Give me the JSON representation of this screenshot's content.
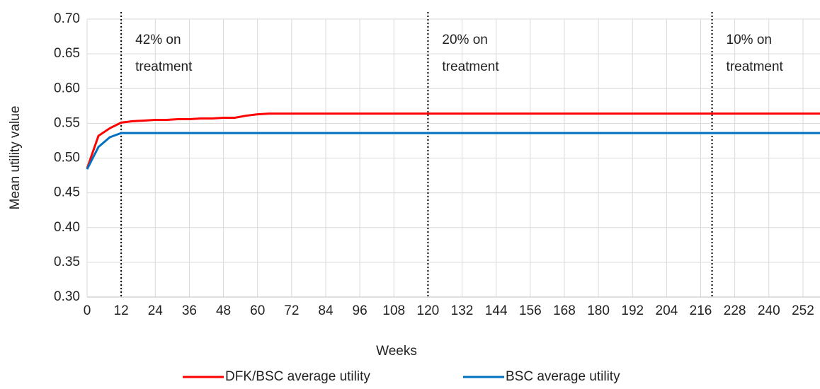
{
  "chart_data": {
    "type": "line",
    "x_label": "Weeks",
    "y_label": "Mean utility value",
    "xlim": [
      0,
      258
    ],
    "xticks": [
      0,
      12,
      24,
      36,
      48,
      60,
      72,
      84,
      96,
      108,
      120,
      132,
      144,
      156,
      168,
      180,
      192,
      204,
      216,
      228,
      240,
      252
    ],
    "ylim": [
      0.3,
      0.7
    ],
    "yticks": [
      {
        "value": 0.3,
        "label": "0.30"
      },
      {
        "value": 0.35,
        "label": "0.35"
      },
      {
        "value": 0.4,
        "label": "0.40"
      },
      {
        "value": 0.45,
        "label": "0.45"
      },
      {
        "value": 0.5,
        "label": "0.50"
      },
      {
        "value": 0.55,
        "label": "0.55"
      },
      {
        "value": 0.6,
        "label": "0.60"
      },
      {
        "value": 0.65,
        "label": "0.65"
      },
      {
        "value": 0.7,
        "label": "0.70"
      }
    ],
    "grid": true,
    "legend": "bottom",
    "series": [
      {
        "name": "DFK/BSC average utility",
        "color": "#ff0000",
        "x": [
          0,
          4,
          8,
          12,
          16,
          20,
          24,
          28,
          32,
          36,
          40,
          44,
          48,
          52,
          56,
          60,
          64,
          258
        ],
        "values": [
          0.485,
          0.532,
          0.543,
          0.551,
          0.553,
          0.554,
          0.555,
          0.555,
          0.556,
          0.556,
          0.557,
          0.557,
          0.558,
          0.558,
          0.561,
          0.563,
          0.564,
          0.564
        ]
      },
      {
        "name": "BSC average utility",
        "color": "#0070c0",
        "x": [
          0,
          4,
          8,
          12,
          258
        ],
        "values": [
          0.484,
          0.516,
          0.53,
          0.536,
          0.536
        ]
      }
    ],
    "annotations": [
      {
        "x": 12,
        "lines": [
          "42% on",
          "treatment"
        ]
      },
      {
        "x": 120,
        "lines": [
          "20% on",
          "treatment"
        ]
      },
      {
        "x": 220,
        "lines": [
          "10% on",
          "treatment"
        ]
      }
    ]
  }
}
